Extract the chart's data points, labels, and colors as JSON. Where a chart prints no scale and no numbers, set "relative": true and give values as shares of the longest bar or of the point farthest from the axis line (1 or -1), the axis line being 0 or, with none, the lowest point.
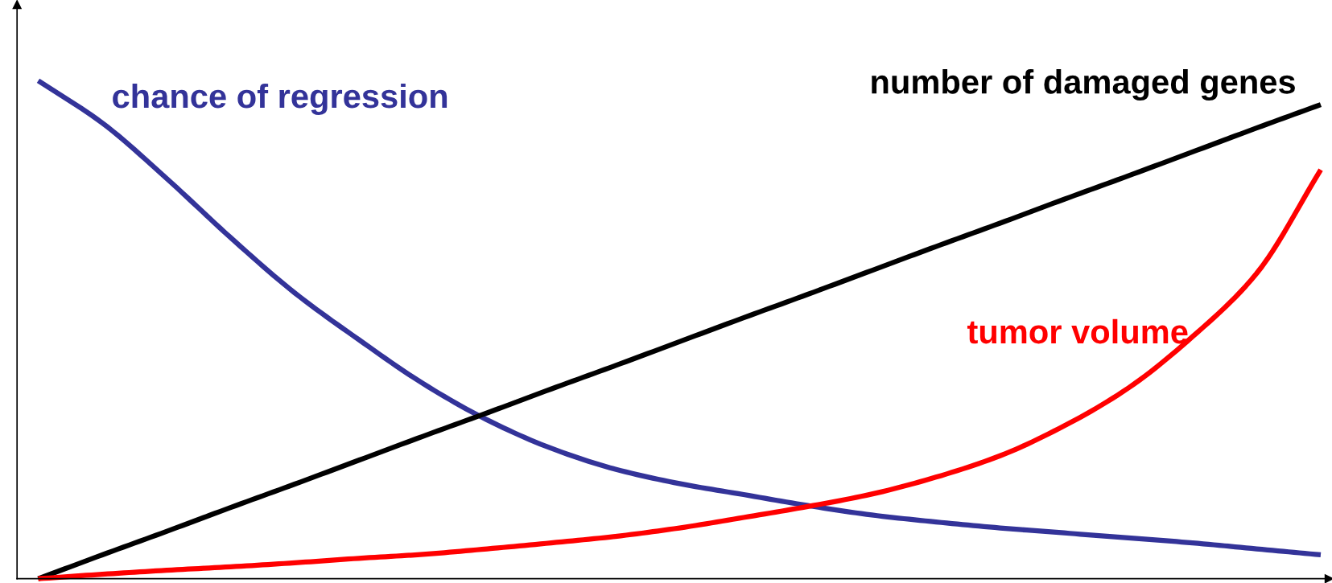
{
  "chart_data": {
    "type": "line",
    "relative": true,
    "legend": false,
    "marker": "none",
    "line_style": "solid",
    "categories": [
      null,
      null,
      null,
      null,
      null,
      null,
      null,
      null,
      null,
      null,
      null,
      null,
      null,
      null,
      null,
      null,
      null,
      null,
      null,
      null,
      null
    ],
    "series": [
      {
        "name": "chance of regression",
        "color": "#333399",
        "values": [
          1.0,
          0.915,
          0.804,
          0.685,
          0.574,
          0.48,
          0.392,
          0.319,
          0.262,
          0.22,
          0.191,
          0.169,
          0.147,
          0.128,
          0.114,
          0.102,
          0.092,
          0.082,
          0.072,
          0.06,
          0.048
        ]
      },
      {
        "name": "number of damaged genes",
        "color": "#000000",
        "values": [
          0,
          0.048,
          0.095,
          0.143,
          0.19,
          0.238,
          0.286,
          0.333,
          0.381,
          0.428,
          0.476,
          0.524,
          0.571,
          0.619,
          0.667,
          0.714,
          0.762,
          0.809,
          0.857,
          0.905,
          0.952
        ]
      },
      {
        "name": "tumor volume",
        "color": "#ff0000",
        "values": [
          0,
          0.009,
          0.017,
          0.024,
          0.032,
          0.041,
          0.049,
          0.06,
          0.072,
          0.085,
          0.102,
          0.123,
          0.145,
          0.17,
          0.204,
          0.247,
          0.307,
          0.383,
          0.486,
          0.613,
          0.821
        ]
      }
    ]
  }
}
